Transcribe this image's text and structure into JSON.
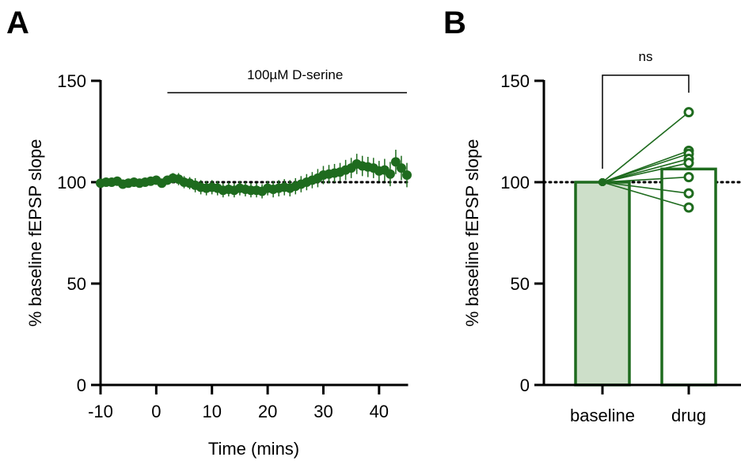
{
  "panels": {
    "a": {
      "letter": "A"
    },
    "b": {
      "letter": "B"
    }
  },
  "chart_data": [
    {
      "type": "scatter",
      "panel": "A",
      "xlabel": "Time (mins)",
      "ylabel": "% baseline fEPSP slope",
      "xlim": [
        -10,
        45
      ],
      "ylim": [
        0,
        150
      ],
      "xticks": [
        -10,
        0,
        10,
        20,
        30,
        40
      ],
      "yticks": [
        0,
        50,
        100,
        150
      ],
      "reference_line": {
        "y": 100,
        "style": "dotted"
      },
      "annotation": {
        "text": "100µM D-serine",
        "x_start": 2,
        "x_end": 45
      },
      "color": "#1e6b1e",
      "x": [
        -10,
        -9,
        -8,
        -7,
        -6,
        -5,
        -4,
        -3,
        -2,
        -1,
        0,
        1,
        2,
        3,
        4,
        5,
        6,
        7,
        8,
        9,
        10,
        11,
        12,
        13,
        14,
        15,
        16,
        17,
        18,
        19,
        20,
        21,
        22,
        23,
        24,
        25,
        26,
        27,
        28,
        29,
        30,
        31,
        32,
        33,
        34,
        35,
        36,
        37,
        38,
        39,
        40,
        41,
        42,
        43,
        44,
        45
      ],
      "y": [
        99.5,
        100,
        100,
        100.5,
        99,
        99.5,
        100,
        99.5,
        100,
        100.5,
        101,
        99.5,
        101,
        102,
        101.5,
        100,
        99.5,
        98.5,
        97.5,
        97,
        97.5,
        97,
        96,
        96.5,
        96,
        97,
        96.5,
        96,
        96,
        95.5,
        97,
        96.5,
        97,
        97.5,
        97,
        98,
        99,
        100,
        101,
        102,
        103.5,
        104,
        104.5,
        105,
        106,
        107,
        109,
        108,
        107.5,
        107,
        105.5,
        106,
        104,
        110,
        107,
        103.5
      ],
      "error": [
        1.5,
        1.5,
        1.5,
        1.5,
        1.5,
        1.5,
        1.5,
        1.5,
        1.5,
        1.5,
        1.5,
        1.5,
        2,
        2.5,
        3,
        3,
        3,
        3.5,
        3.5,
        3.5,
        3.5,
        3.5,
        3.5,
        3.5,
        3.5,
        3.5,
        3.5,
        3.5,
        3.5,
        3.5,
        3.5,
        4,
        4,
        4,
        4,
        4,
        4,
        4,
        4,
        4.5,
        4.5,
        4.5,
        4.5,
        4.5,
        5,
        5,
        5,
        5,
        5,
        5,
        5,
        5.5,
        6,
        6,
        6,
        6
      ]
    },
    {
      "type": "bar",
      "panel": "B",
      "categories": [
        "baseline",
        "drug"
      ],
      "values": [
        100,
        106.5
      ],
      "ylabel": "% baseline fEPSP slope",
      "ylim": [
        0,
        150
      ],
      "yticks": [
        0,
        50,
        100,
        150
      ],
      "reference_line": {
        "y": 100,
        "style": "dotted"
      },
      "significance": {
        "text": "ns",
        "between": [
          "baseline",
          "drug"
        ]
      },
      "paired_points": {
        "baseline": [
          100,
          100,
          100,
          100,
          100,
          100,
          100,
          100
        ],
        "drug": [
          134.5,
          115.5,
          114,
          111.5,
          109.5,
          102.5,
          94.5,
          87.5
        ]
      },
      "colors": {
        "line": "#1e6b1e",
        "baseline_fill": "#cddfc9",
        "drug_fill": "#ffffff"
      }
    }
  ]
}
